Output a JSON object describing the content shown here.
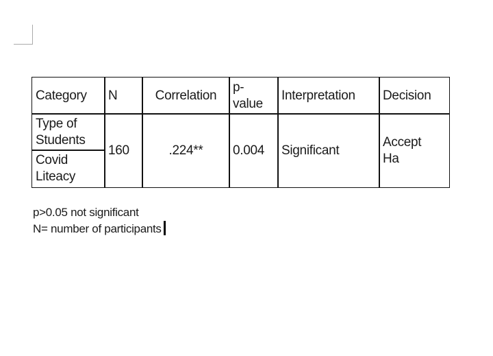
{
  "table": {
    "headers": [
      "Category",
      "N",
      "Correlation",
      "p-\nvalue",
      "Interpretation",
      "Decision"
    ],
    "categories": [
      "Type of Students",
      "Covid Liteacy"
    ],
    "n": "160",
    "correlation": ".224**",
    "p_value": "0.004",
    "interpretation": "Significant",
    "decision": "Accept Ha"
  },
  "notes": [
    "p>0.05 not significant",
    "N= number of participants"
  ]
}
